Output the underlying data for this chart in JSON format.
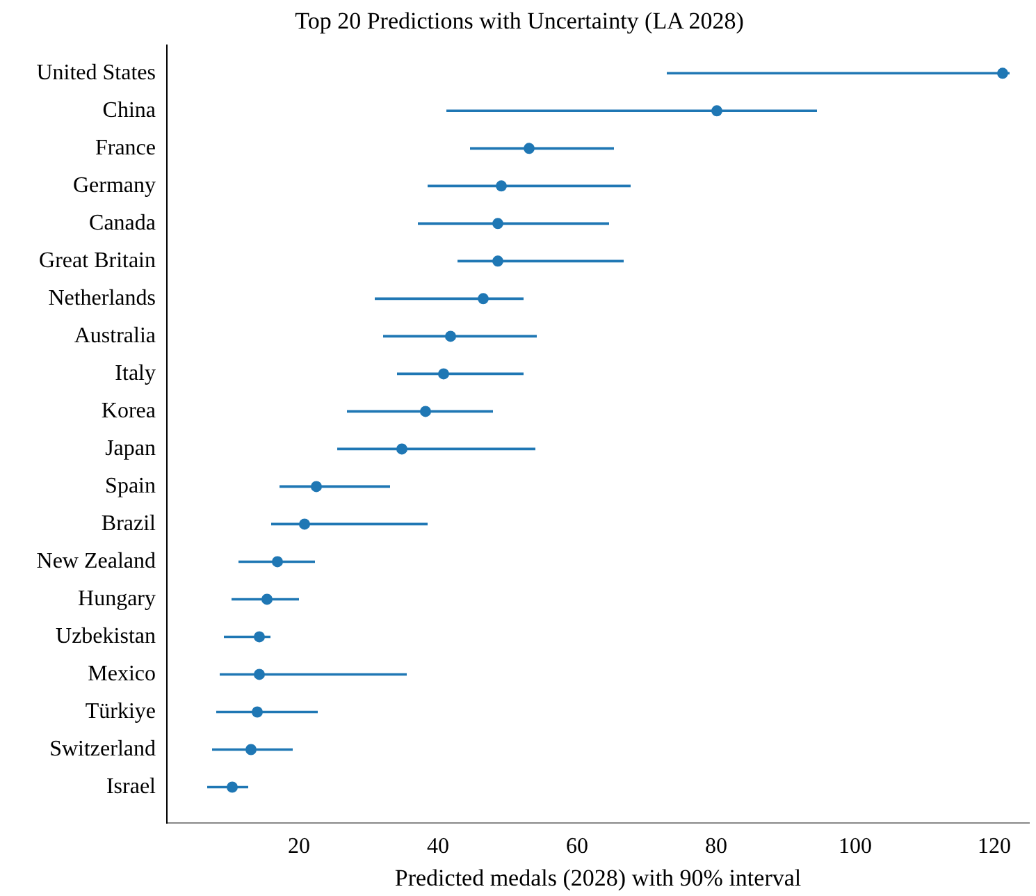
{
  "chart_data": {
    "type": "scatter",
    "orientation": "horizontal",
    "title": "Top 20 Predictions with Uncertainty (LA 2028)",
    "xlabel": "Predicted medals (2028) with 90% interval",
    "categories": [
      "United States",
      "China",
      "France",
      "Germany",
      "Canada",
      "Great Britain",
      "Netherlands",
      "Australia",
      "Italy",
      "Korea",
      "Japan",
      "Spain",
      "Brazil",
      "New Zealand",
      "Hungary",
      "Uzbekistan",
      "Mexico",
      "Türkiye",
      "Switzerland",
      "Israel"
    ],
    "values": [
      121.2,
      80.1,
      53.1,
      49.1,
      48.6,
      48.6,
      46.5,
      41.8,
      40.8,
      38.2,
      34.8,
      22.5,
      20.8,
      16.9,
      15.4,
      14.3,
      14.3,
      14.0,
      13.1,
      10.4
    ],
    "errors": [
      [
        72.9,
        122.2
      ],
      [
        41.2,
        94.5
      ],
      [
        44.6,
        65.3
      ],
      [
        38.5,
        67.7
      ],
      [
        37.1,
        64.6
      ],
      [
        42.8,
        66.7
      ],
      [
        30.9,
        52.3
      ],
      [
        32.1,
        54.2
      ],
      [
        34.1,
        52.3
      ],
      [
        26.9,
        47.9
      ],
      [
        25.5,
        54.0
      ],
      [
        17.2,
        33.1
      ],
      [
        16.0,
        38.5
      ],
      [
        11.3,
        22.3
      ],
      [
        10.3,
        20.0
      ],
      [
        9.2,
        15.9
      ],
      [
        8.6,
        35.5
      ],
      [
        8.1,
        22.7
      ],
      [
        7.5,
        19.1
      ],
      [
        6.8,
        12.7
      ]
    ],
    "color": "#1f77b4",
    "marker": "circle",
    "grid": false,
    "legend": false,
    "xlim": [
      1,
      125
    ],
    "xticks": [
      20,
      40,
      60,
      80,
      100,
      120
    ]
  }
}
